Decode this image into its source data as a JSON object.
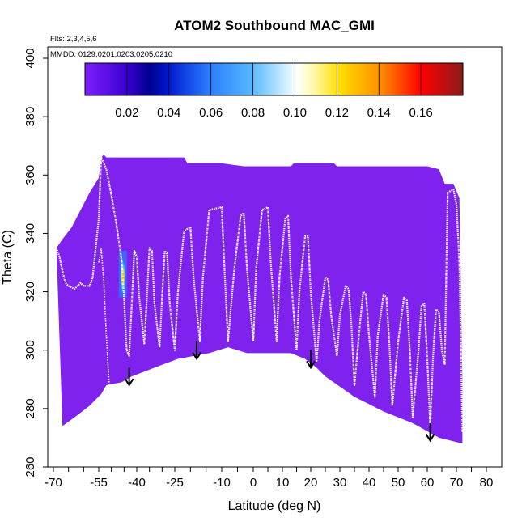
{
  "chart_data": {
    "type": "area",
    "title": "ATOM2 Southbound MAC_GMI",
    "flights_note": "Flts: 2,3,4,5,6",
    "dates_note": "MMDD: 0129,0201,0203,0205,0210",
    "xlabel": "Latitude (deg N)",
    "ylabel": "Theta (C)",
    "xlim": [
      -70,
      80
    ],
    "ylim": [
      260,
      400
    ],
    "x_tick_labels": [
      "-70",
      "-55",
      "-40",
      "-25",
      "-10",
      "0",
      "10",
      "20",
      "30",
      "40",
      "50",
      "60",
      "70",
      "80"
    ],
    "y_tick_labels": [
      "260",
      "280",
      "300",
      "320",
      "340",
      "360",
      "380",
      "400"
    ],
    "colorbar": {
      "range": [
        0,
        0.18
      ],
      "tick_labels": [
        "0.02",
        "0.04",
        "0.06",
        "0.08",
        "0.10",
        "0.12",
        "0.14",
        "0.16"
      ],
      "colors": [
        "#7f1fff",
        "#00008f",
        "#2a7fff",
        "#ffffff",
        "#ffe000",
        "#ff9000",
        "#ff0000",
        "#8b1a1a"
      ]
    },
    "field_color": "#7f22ee",
    "domain_top": [
      [
        -69,
        335
      ],
      [
        -67,
        338
      ],
      [
        -64,
        342
      ],
      [
        -61,
        348
      ],
      [
        -58,
        354
      ],
      [
        -55,
        359
      ],
      [
        -54,
        366
      ],
      [
        -53,
        367
      ],
      [
        -52,
        366
      ],
      [
        -40,
        366
      ],
      [
        -30,
        366
      ],
      [
        -22,
        366
      ],
      [
        -21,
        364
      ],
      [
        -10,
        364
      ],
      [
        -3,
        363
      ],
      [
        0,
        363
      ],
      [
        13,
        363
      ],
      [
        14,
        364
      ],
      [
        28,
        364
      ],
      [
        29,
        363
      ],
      [
        60,
        363
      ],
      [
        64,
        362
      ],
      [
        66,
        357
      ],
      [
        69,
        357
      ],
      [
        71,
        352
      ],
      [
        72,
        290
      ]
    ],
    "domain_bottom": [
      [
        -67,
        274
      ],
      [
        -63,
        277
      ],
      [
        -58,
        281
      ],
      [
        -54,
        285
      ],
      [
        -52,
        288
      ],
      [
        -46,
        289
      ],
      [
        -42,
        291
      ],
      [
        -36,
        293
      ],
      [
        -30,
        295
      ],
      [
        -24,
        297
      ],
      [
        -14,
        299
      ],
      [
        -8,
        301
      ],
      [
        -2,
        299
      ],
      [
        6,
        299
      ],
      [
        13,
        299
      ],
      [
        18,
        297
      ],
      [
        22,
        294
      ],
      [
        25,
        291
      ],
      [
        35,
        284
      ],
      [
        45,
        279
      ],
      [
        55,
        275
      ],
      [
        64,
        270
      ],
      [
        72,
        268
      ]
    ],
    "flight_track": [
      [
        -69,
        335
      ],
      [
        -68,
        332
      ],
      [
        -67,
        327
      ],
      [
        -66,
        323
      ],
      [
        -65,
        322
      ],
      [
        -63,
        321
      ],
      [
        -61,
        323
      ],
      [
        -60,
        322
      ],
      [
        -58,
        322
      ],
      [
        -57,
        325
      ],
      [
        -55,
        345
      ],
      [
        -54,
        366
      ],
      [
        -52,
        362
      ],
      [
        -50,
        353
      ],
      [
        -48,
        343
      ],
      [
        -46,
        331
      ],
      [
        -45,
        318
      ],
      [
        -44,
        300
      ],
      [
        -43,
        298
      ],
      [
        -42,
        315
      ],
      [
        -41,
        334
      ],
      [
        -40,
        332
      ],
      [
        -39,
        318
      ],
      [
        -37,
        302
      ],
      [
        -36,
        318
      ],
      [
        -35,
        335
      ],
      [
        -34,
        334
      ],
      [
        -33,
        316
      ],
      [
        -31,
        301
      ],
      [
        -30,
        318
      ],
      [
        -29,
        334
      ],
      [
        -28,
        333
      ],
      [
        -27,
        316
      ],
      [
        -25,
        300
      ],
      [
        -24,
        320
      ],
      [
        -22,
        341
      ],
      [
        -20,
        342
      ],
      [
        -19,
        325
      ],
      [
        -17,
        303
      ],
      [
        -16,
        325
      ],
      [
        -14,
        348
      ],
      [
        -10,
        349
      ],
      [
        -9,
        325
      ],
      [
        -8,
        303
      ],
      [
        -6,
        328
      ],
      [
        -4,
        346
      ],
      [
        -3,
        347
      ],
      [
        -2,
        328
      ],
      [
        0,
        303
      ],
      [
        1,
        328
      ],
      [
        3,
        348
      ],
      [
        5,
        349
      ],
      [
        6,
        330
      ],
      [
        8,
        303
      ],
      [
        9,
        325
      ],
      [
        11,
        345
      ],
      [
        12,
        346
      ],
      [
        13,
        325
      ],
      [
        15,
        300
      ],
      [
        16,
        320
      ],
      [
        18,
        339
      ],
      [
        19,
        339
      ],
      [
        20,
        320
      ],
      [
        22,
        296
      ],
      [
        23,
        310
      ],
      [
        25,
        325
      ],
      [
        26,
        324
      ],
      [
        27,
        312
      ],
      [
        29,
        298
      ],
      [
        30,
        312
      ],
      [
        32,
        322
      ],
      [
        33,
        321
      ],
      [
        34,
        308
      ],
      [
        35,
        288
      ],
      [
        37,
        310
      ],
      [
        38,
        320
      ],
      [
        39,
        319
      ],
      [
        40,
        305
      ],
      [
        42,
        284
      ],
      [
        43,
        305
      ],
      [
        45,
        319
      ],
      [
        46,
        318
      ],
      [
        47,
        302
      ],
      [
        48,
        281
      ],
      [
        50,
        303
      ],
      [
        52,
        318
      ],
      [
        53,
        317
      ],
      [
        54,
        300
      ],
      [
        55,
        277
      ],
      [
        57,
        300
      ],
      [
        58,
        315
      ],
      [
        59,
        316
      ],
      [
        60,
        297
      ],
      [
        61,
        274
      ],
      [
        62,
        298
      ],
      [
        63,
        314
      ],
      [
        64,
        313
      ],
      [
        65,
        300
      ],
      [
        66,
        295
      ],
      [
        67,
        354
      ],
      [
        69,
        355
      ],
      [
        70,
        350
      ],
      [
        71,
        330
      ],
      [
        72,
        272
      ]
    ],
    "secondary_track": [
      [
        -55,
        330
      ],
      [
        -54,
        335
      ],
      [
        -53,
        323
      ],
      [
        -52,
        305
      ],
      [
        -51,
        290
      ],
      [
        -50,
        282
      ],
      [
        -49,
        287
      ]
    ],
    "hotspot": {
      "x": -45.5,
      "y": [
        318,
        334
      ],
      "value_peak": 0.15
    },
    "arrows": [
      {
        "x": -43,
        "y_top": 294,
        "y_tip": 288
      },
      {
        "x": -18,
        "y_top": 303,
        "y_tip": 297
      },
      {
        "x": 20,
        "y_top": 300,
        "y_tip": 294
      },
      {
        "x": 61,
        "y_top": 275,
        "y_tip": 269
      }
    ]
  }
}
